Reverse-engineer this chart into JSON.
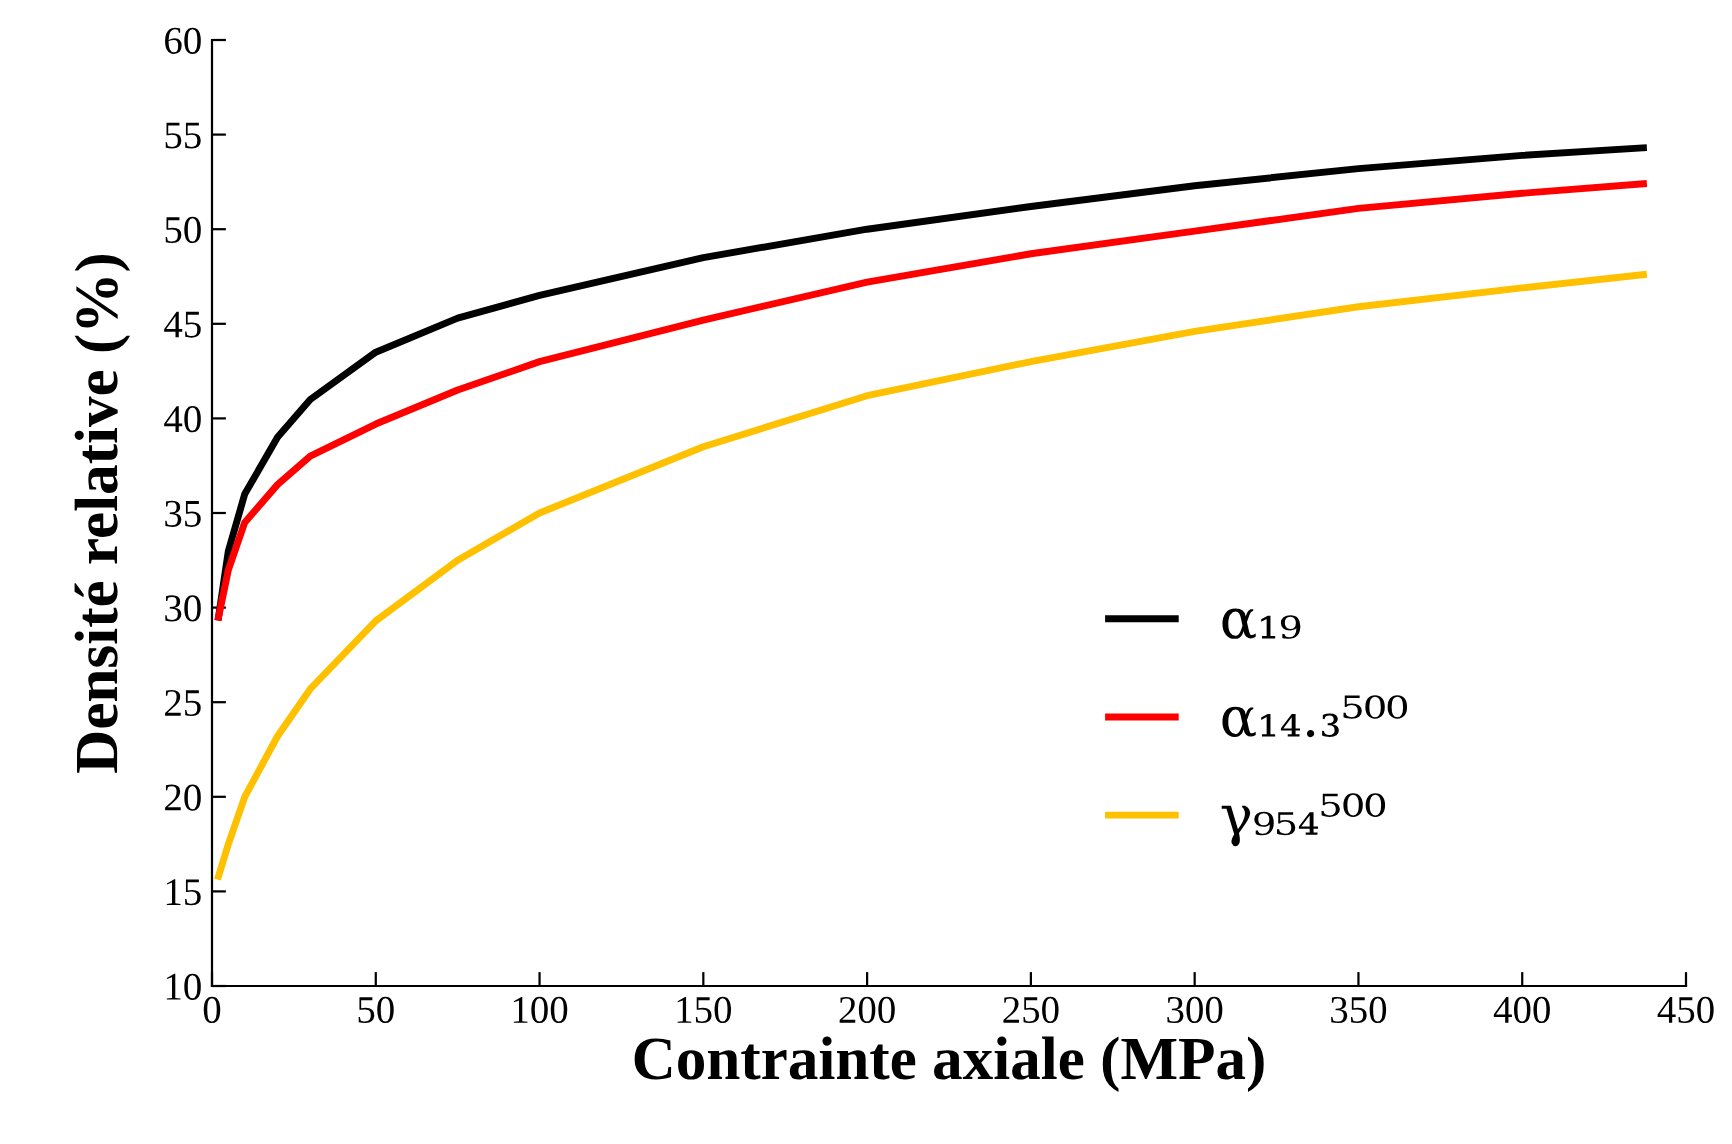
{
  "chart_data": {
    "type": "line",
    "xlabel": "Contrainte axiale (MPa)",
    "ylabel": "Densité relative (%)",
    "xlim": [
      0,
      450
    ],
    "xticks": [
      0,
      50,
      100,
      150,
      200,
      250,
      300,
      350,
      400,
      450
    ],
    "ylim": [
      10,
      60
    ],
    "yticks": [
      10,
      15,
      20,
      25,
      30,
      35,
      40,
      45,
      50,
      55,
      60
    ],
    "grid": false,
    "legend": "center",
    "marker": "none",
    "line_style": "solid",
    "x": [
      2,
      5,
      10,
      20,
      30,
      50,
      75,
      100,
      150,
      200,
      250,
      300,
      350,
      400,
      437
    ],
    "series": [
      {
        "name": "α₁₉",
        "color": "#000000",
        "values": [
          29.5,
          33,
          36,
          39,
          41,
          43.5,
          45.3,
          46.5,
          48.5,
          50,
          51.2,
          52.3,
          53.2,
          53.9,
          54.3
        ]
      },
      {
        "name": "α₁₄.₃⁵⁰⁰",
        "color": "#ff0000",
        "values": [
          29.5,
          32,
          34.5,
          36.5,
          38,
          39.7,
          41.5,
          43,
          45.2,
          47.2,
          48.7,
          49.9,
          51.1,
          51.9,
          52.4
        ]
      },
      {
        "name": "γ₉₅₄⁵⁰⁰",
        "color": "#ffc000",
        "values": [
          15.8,
          17.5,
          20,
          23.2,
          25.7,
          29.3,
          32.5,
          35,
          38.5,
          41.2,
          43,
          44.6,
          45.9,
          46.9,
          47.6
        ]
      }
    ]
  }
}
